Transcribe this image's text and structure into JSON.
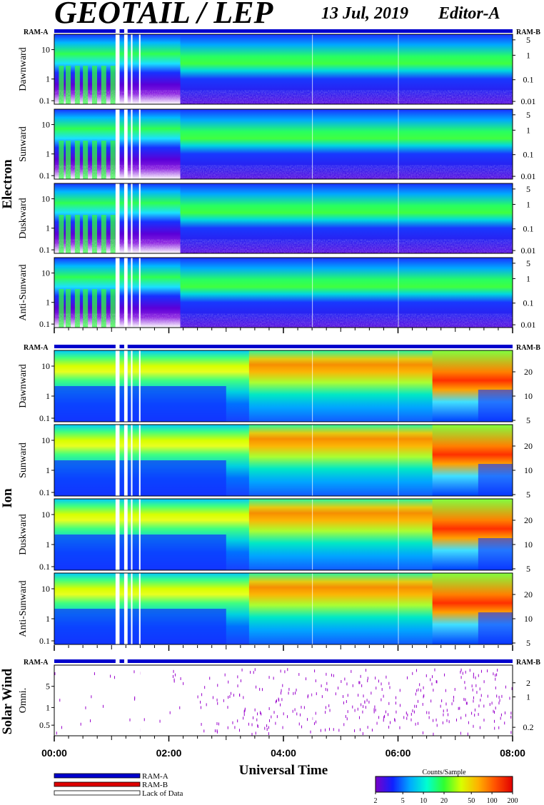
{
  "header": {
    "title": "GEOTAIL / LEP",
    "date": "13 Jul, 2019",
    "editor": "Editor-A"
  },
  "ram": {
    "left": "RAM-A",
    "right": "RAM-B"
  },
  "colors": {
    "ram_a": "#0000cc",
    "ram_b": "#dd0000",
    "gap": "#ffffff",
    "solar_wind_points": "#9900cc",
    "colormap": [
      "#7a00c8",
      "#1020ff",
      "#00a8ff",
      "#00ffd0",
      "#30ff30",
      "#d8ff00",
      "#ffb000",
      "#ff5000",
      "#e00000"
    ]
  },
  "chart_data": {
    "type": "heatmap",
    "xlabel": "Universal Time",
    "x_ticks": [
      "00:00",
      "02:00",
      "04:00",
      "06:00",
      "08:00"
    ],
    "x_range_hours": [
      0,
      8
    ],
    "data_gaps_hours": [
      [
        1.07,
        1.14
      ],
      [
        1.22,
        1.28
      ],
      [
        1.34,
        1.36
      ],
      [
        1.48,
        1.5
      ]
    ],
    "minor_gaps_hours": [
      4.5,
      6.0
    ],
    "groups": [
      {
        "name": "Electron",
        "ylim_left": [
          0.1,
          40
        ],
        "left_ticks": [
          "10",
          "1",
          "0.1"
        ],
        "right_ticks": [
          "5",
          "1",
          "0.1",
          "0.01"
        ],
        "panels": [
          {
            "name": "Dawnward"
          },
          {
            "name": "Sunward"
          },
          {
            "name": "Duskward"
          },
          {
            "name": "Anti-Sunward"
          }
        ]
      },
      {
        "name": "Ion",
        "ylim_left": [
          0.1,
          40
        ],
        "left_ticks": [
          "10",
          "1",
          "0.1"
        ],
        "right_ticks": [
          "20",
          "10",
          "5"
        ],
        "panels": [
          {
            "name": "Dawnward"
          },
          {
            "name": "Sunward"
          },
          {
            "name": "Duskward"
          },
          {
            "name": "Anti-Sunward"
          }
        ]
      },
      {
        "name": "Solar Wind",
        "left_ticks": [
          "5",
          "1",
          "0.5"
        ],
        "right_ticks": [
          "2",
          "1",
          "0.2"
        ],
        "panels": [
          {
            "name": "Omni."
          }
        ]
      }
    ],
    "colorbar": {
      "title": "Counts/Sample",
      "ticks": [
        "2",
        "5",
        "10",
        "20",
        "50",
        "100",
        "200"
      ],
      "range": [
        2,
        200
      ],
      "scale": "log"
    }
  },
  "legend": [
    {
      "label": "RAM-A",
      "color": "#0000cc"
    },
    {
      "label": "RAM-B",
      "color": "#dd0000"
    },
    {
      "label": "Lack of Data",
      "color": "#ffffff"
    }
  ]
}
